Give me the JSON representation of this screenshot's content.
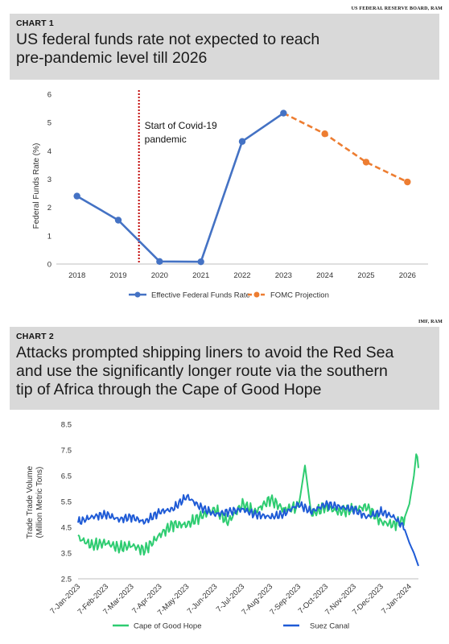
{
  "chart1": {
    "source": "US FEDERAL RESERVE BOARD, RAM",
    "tag": "CHART 1",
    "title_line1": "US federal funds rate not expected to reach",
    "title_line2": "pre-pandemic level till 2026"
  },
  "chart2": {
    "source": "IMF, RAM",
    "tag": "CHART 2",
    "title_line1": "Attacks prompted shipping liners to avoid the Red Sea",
    "title_line2": "and use the significantly longer route via the southern",
    "title_line3": "tip of Africa through the Cape of Good Hope"
  },
  "chart_data": [
    {
      "type": "line",
      "categories": [
        "2018",
        "2019",
        "2020",
        "2021",
        "2022",
        "2023",
        "2024",
        "2025",
        "2026"
      ],
      "ylabel": "Federal Funds Rate (%)",
      "ylim": [
        0,
        6
      ],
      "yticks": [
        "0",
        "1",
        "2",
        "3",
        "4",
        "5",
        "6"
      ],
      "annotation_line1": "Start of Covid-19",
      "annotation_line2": "pandemic",
      "annotation_x": 2019.5,
      "legend_placement": "bottom",
      "series": [
        {
          "name": "Effective Federal Funds Rate",
          "color": "#4472c4",
          "style": "solid",
          "x": [
            "2018",
            "2019",
            "2020",
            "2021",
            "2022",
            "2023"
          ],
          "values": [
            2.4,
            1.55,
            0.09,
            0.08,
            4.33,
            5.33
          ]
        },
        {
          "name": "FOMC Projection",
          "color": "#ed7d31",
          "style": "dashed",
          "x": [
            "2023",
            "2024",
            "2025",
            "2026"
          ],
          "values": [
            5.33,
            4.6,
            3.6,
            2.9
          ]
        }
      ],
      "marker_color": "#c00000"
    },
    {
      "type": "line",
      "ylabel": "Trade Trade Volume\n(Million Metric Tons)",
      "ylabel_line1": "Trade Trade Volume",
      "ylabel_line2": "(Million Metric Tons)",
      "ylim": [
        2.5,
        8.5
      ],
      "yticks": [
        "2.5",
        "3.5",
        "4.5",
        "5.5",
        "6.5",
        "7.5",
        "8.5"
      ],
      "xticks": [
        "7-Jan-2023",
        "7-Feb-2023",
        "7-Mar-2023",
        "7-Apr-2023",
        "7-May-2023",
        "7-Jun-2023",
        "7-Jul-2023",
        "7-Aug-2023",
        "7-Sep-2023",
        "7-Oct-2023",
        "7-Nov-2023",
        "7-Dec-2023",
        "7-Jan-2024"
      ],
      "legend_placement": "bottom",
      "series": [
        {
          "name": "Cape of Good Hope",
          "color": "#2ecc71",
          "x": [
            "7-Jan-2023",
            "22-Jan-2023",
            "7-Feb-2023",
            "21-Feb-2023",
            "7-Mar-2023",
            "21-Mar-2023",
            "7-Apr-2023",
            "21-Apr-2023",
            "7-May-2023",
            "21-May-2023",
            "7-Jun-2023",
            "21-Jun-2023",
            "7-Jul-2023",
            "21-Jul-2023",
            "7-Aug-2023",
            "21-Aug-2023",
            "7-Sep-2023",
            "14-Sep-2023",
            "21-Sep-2023",
            "7-Oct-2023",
            "21-Oct-2023",
            "7-Nov-2023",
            "21-Nov-2023",
            "7-Dec-2023",
            "21-Dec-2023",
            "1-Jan-2024",
            "7-Jan-2024",
            "12-Jan-2024",
            "15-Jan-2024",
            "17-Jan-2024"
          ],
          "values": [
            4.1,
            3.8,
            3.9,
            3.7,
            3.8,
            3.6,
            4.2,
            4.6,
            4.6,
            4.9,
            5.2,
            4.7,
            5.4,
            5.1,
            5.6,
            5.2,
            5.3,
            6.9,
            5.0,
            5.3,
            5.1,
            5.2,
            5.3,
            4.7,
            4.6,
            4.8,
            5.4,
            6.5,
            7.5,
            6.8
          ]
        },
        {
          "name": "Suez Canal",
          "color": "#1f5bd6",
          "x": [
            "7-Jan-2023",
            "22-Jan-2023",
            "7-Feb-2023",
            "21-Feb-2023",
            "7-Mar-2023",
            "21-Mar-2023",
            "7-Apr-2023",
            "21-Apr-2023",
            "7-May-2023",
            "21-May-2023",
            "7-Jun-2023",
            "21-Jun-2023",
            "7-Jul-2023",
            "21-Jul-2023",
            "7-Aug-2023",
            "21-Aug-2023",
            "7-Sep-2023",
            "21-Sep-2023",
            "7-Oct-2023",
            "21-Oct-2023",
            "7-Nov-2023",
            "21-Nov-2023",
            "7-Dec-2023",
            "21-Dec-2023",
            "1-Jan-2024",
            "7-Jan-2024",
            "12-Jan-2024",
            "17-Jan-2024"
          ],
          "values": [
            4.7,
            4.9,
            5.0,
            4.8,
            4.9,
            4.7,
            5.1,
            5.2,
            5.7,
            5.3,
            5.0,
            5.1,
            5.2,
            5.0,
            4.9,
            5.0,
            5.4,
            5.1,
            5.4,
            5.3,
            5.2,
            4.9,
            5.1,
            4.9,
            4.5,
            3.9,
            3.5,
            3.0
          ]
        }
      ]
    }
  ]
}
